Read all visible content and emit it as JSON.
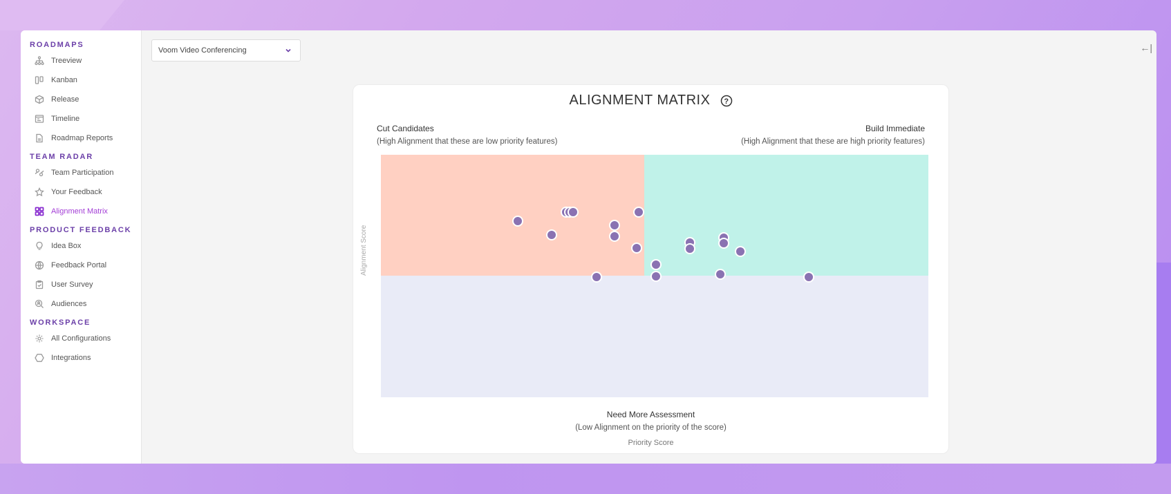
{
  "sidebar": {
    "sections": [
      {
        "title": "ROADMAPS",
        "items": [
          {
            "label": "Treeview",
            "icon": "treeview-icon"
          },
          {
            "label": "Kanban",
            "icon": "kanban-icon"
          },
          {
            "label": "Release",
            "icon": "cube-icon"
          },
          {
            "label": "Timeline",
            "icon": "timeline-icon"
          },
          {
            "label": "Roadmap Reports",
            "icon": "document-icon"
          }
        ]
      },
      {
        "title": "TEAM RADAR",
        "items": [
          {
            "label": "Team Participation",
            "icon": "team-icon"
          },
          {
            "label": "Your Feedback",
            "icon": "star-icon"
          },
          {
            "label": "Alignment Matrix",
            "icon": "grid-icon",
            "active": true
          }
        ]
      },
      {
        "title": "PRODUCT FEEDBACK",
        "items": [
          {
            "label": "Idea Box",
            "icon": "lightbulb-icon"
          },
          {
            "label": "Feedback Portal",
            "icon": "globe-icon"
          },
          {
            "label": "User Survey",
            "icon": "clipboard-icon"
          },
          {
            "label": "Audiences",
            "icon": "search-user-icon"
          }
        ]
      },
      {
        "title": "WORKSPACE",
        "items": [
          {
            "label": "All Configurations",
            "icon": "gear-icon"
          },
          {
            "label": "Integrations",
            "icon": "hexagon-icon"
          }
        ]
      }
    ]
  },
  "header": {
    "product_select": "Voom Video Conferencing",
    "collapse_label": "←|"
  },
  "colors": {
    "accent": "#6b3fa8",
    "active": "#a33ed6",
    "cut_quadrant": "#ffd0c2",
    "build_quadrant": "#c0f2e9",
    "assess_quadrant": "#e9ebf7",
    "dot": "#8a72b2"
  },
  "chart_data": {
    "type": "scatter",
    "title": "ALIGNMENT MATRIX",
    "xlabel": "Priority Score",
    "ylabel": "Alignment Score",
    "xlim": [
      0,
      100
    ],
    "ylim": [
      0,
      100
    ],
    "grid": false,
    "quadrants": {
      "top_left": {
        "title": "Cut Candidates",
        "subtitle": "(High Alignment that these are low priority features)"
      },
      "top_right": {
        "title": "Build Immediate",
        "subtitle": "(High Alignment that these are high priority features)"
      },
      "bottom": {
        "title": "Need More Assessment",
        "subtitle": "(Low Alignment on the priority of the score)"
      }
    },
    "points": [
      {
        "x": 25.0,
        "y": 72.6
      },
      {
        "x": 31.2,
        "y": 67.0
      },
      {
        "x": 33.8,
        "y": 76.4
      },
      {
        "x": 34.5,
        "y": 76.4
      },
      {
        "x": 35.1,
        "y": 76.4
      },
      {
        "x": 42.7,
        "y": 70.9
      },
      {
        "x": 42.7,
        "y": 66.4
      },
      {
        "x": 46.7,
        "y": 61.5
      },
      {
        "x": 47.1,
        "y": 76.4
      },
      {
        "x": 39.4,
        "y": 49.6
      },
      {
        "x": 50.2,
        "y": 54.7
      },
      {
        "x": 50.2,
        "y": 50.0
      },
      {
        "x": 56.4,
        "y": 63.8
      },
      {
        "x": 56.4,
        "y": 61.3
      },
      {
        "x": 62.6,
        "y": 65.8
      },
      {
        "x": 62.6,
        "y": 63.5
      },
      {
        "x": 65.7,
        "y": 60.1
      },
      {
        "x": 62.0,
        "y": 50.7
      },
      {
        "x": 78.1,
        "y": 49.6
      }
    ]
  },
  "chart": {
    "help_icon": "?"
  }
}
